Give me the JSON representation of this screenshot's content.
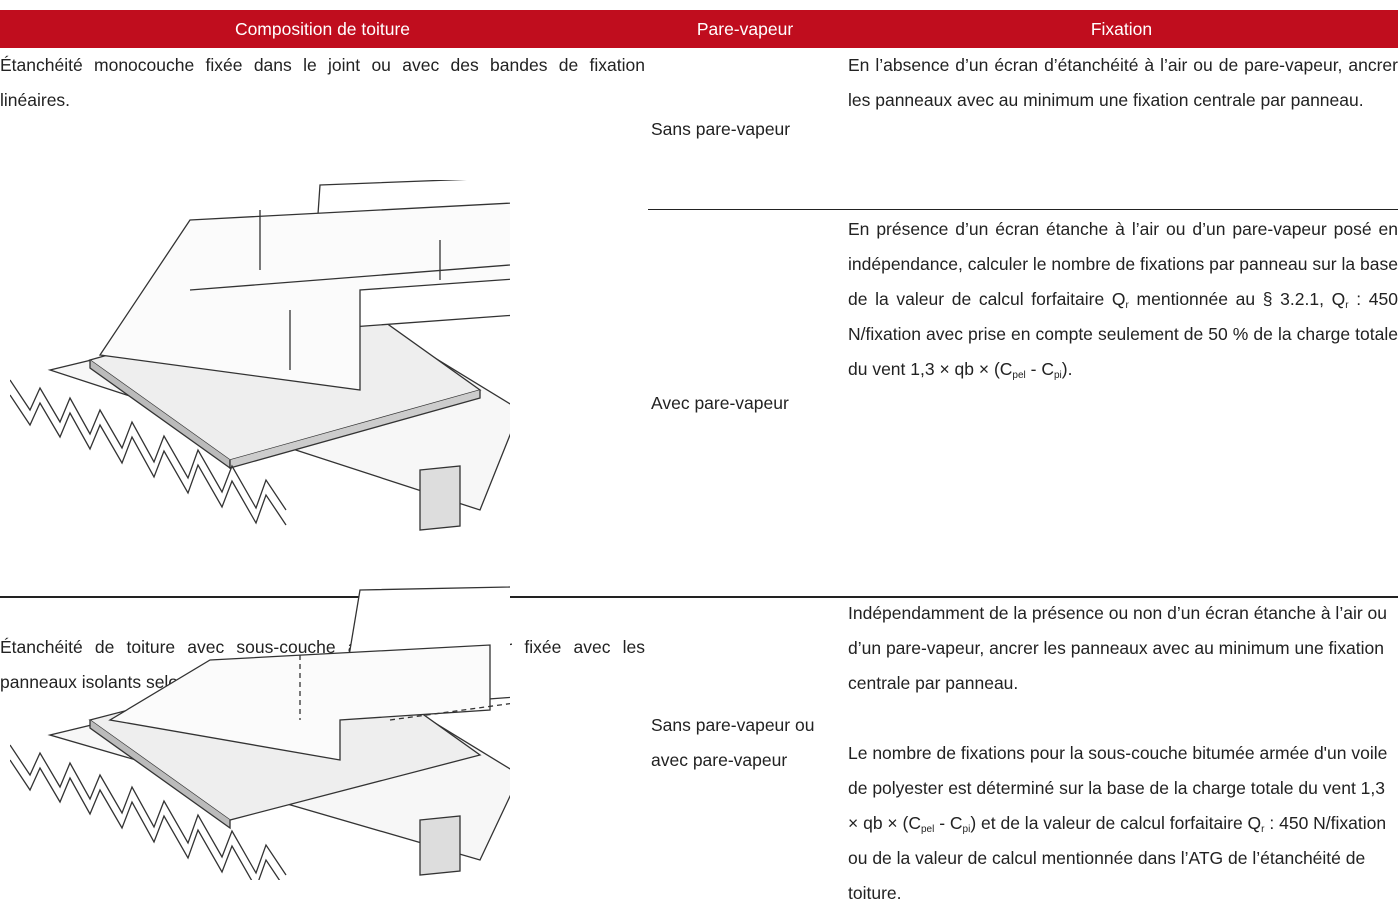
{
  "table": {
    "header": [
      "Composition de toiture",
      "Pare-vapeur",
      "Fixation"
    ],
    "rows": [
      {
        "composition": "Étanchéité monocouche fixée dans le joint ou avec des bandes de fixation linéaires.",
        "variants": [
          {
            "pare_vapeur": "Sans pare-vapeur",
            "fixation": [
              [
                "En l’absence d’un écran d’étanchéité à l’air ou de pare-vapeur, ancrer les panneaux avec au minimum une fixation centrale par panneau."
              ]
            ]
          },
          {
            "pare_vapeur": "Avec pare-vapeur",
            "fixation": [
              [
                "En présence d’un écran étanche à l’air ou d’un pare-vapeur posé en indépendance, calculer le nombre de fixations par panneau sur la base de la valeur de calcul forfaitaire Q",
                {
                  "sub": "r"
                },
                " mentionnée au § 3.2.1, Q",
                {
                  "sub": "r"
                },
                " : 450 N/fixation avec prise en compte seulement de 50 % de la charge totale du vent 1,3 × qb × (C",
                {
                  "sub": "pel"
                },
                " - C",
                {
                  "sub": "pi"
                },
                ")."
              ]
            ]
          }
        ]
      },
      {
        "composition": "Étanchéité de toiture avec sous-couche armée au polyester fixée avec les panneaux isolants selon le système « plic-ploc ».",
        "variants": [
          {
            "pare_vapeur": "Sans pare-vapeur ou avec pare-vapeur",
            "fixation": [
              [
                "Indépendamment de la présence ou non d’un écran étanche à l’air ou d’un pare-vapeur, ancrer les panneaux avec au minimum une fixation centrale par panneau."
              ],
              [
                "Le nombre de fixations pour la sous-couche bitumée armée d'un voile de polyester est déterminé sur la base de la charge totale du vent 1,3 × qb × (C",
                {
                  "sub": "pel"
                },
                " - C",
                {
                  "sub": "pi"
                },
                ") et de la valeur de calcul forfaitaire Q",
                {
                  "sub": "r"
                },
                " : 450 N/fixation ou de la valeur de calcul mentionnée dans l’ATG de l’étanchéité de toiture."
              ]
            ]
          }
        ]
      }
    ]
  }
}
